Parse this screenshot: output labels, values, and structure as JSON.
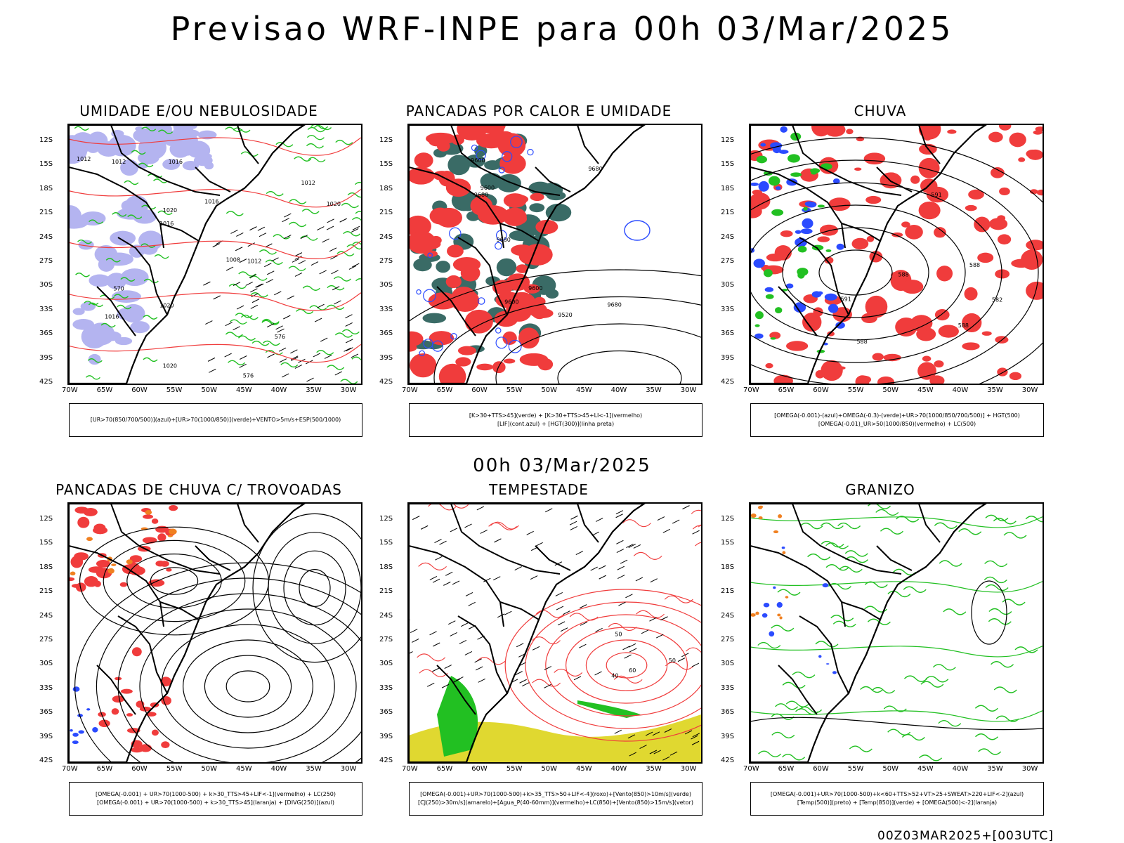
{
  "title": "Previsao WRF-INPE  para 00h 03/Mar/2025",
  "subtitle": "00h 03/Mar/2025",
  "footer": "00Z03MAR2025+[003UTC]",
  "y_ticks": [
    "12S",
    "15S",
    "18S",
    "21S",
    "24S",
    "27S",
    "30S",
    "33S",
    "36S",
    "39S",
    "42S"
  ],
  "x_ticks": [
    "70W",
    "65W",
    "60W",
    "55W",
    "50W",
    "45W",
    "40W",
    "35W",
    "30W"
  ],
  "colors": {
    "red": "#f03c3c",
    "green": "#22c022",
    "blue": "#2b4bff",
    "lavender": "#b4b4f0",
    "teal": "#3a6b66",
    "yellow": "#e0d830",
    "orange": "#f08020"
  },
  "panels": [
    {
      "title": "UMIDADE E/OU NEBULOSIDADE",
      "legend": [
        "[UR>70(850/700/500)](azul)+[UR>70(1000/850)](verde)+VENTO>5m/s+ESP(500/1000)"
      ],
      "contour_labels": [
        "1016",
        "1016",
        "1016",
        "1012",
        "1012",
        "1020",
        "1020",
        "1008",
        "1012",
        "1016",
        "1020",
        "1020",
        "1012",
        "576",
        "570",
        "576"
      ]
    },
    {
      "title": "PANCADAS POR CALOR E UMIDADE",
      "legend": [
        "[K>30+TTS>45](verde) + [K>30+TTS>45+LI<-1](vermelho)",
        "[LIF](cont.azul) + [HGT(300)](linha preta)"
      ],
      "contour_labels": [
        "9680",
        "9600",
        "9600",
        "9600",
        "9520",
        "9680",
        "9680",
        "9680",
        "9600"
      ]
    },
    {
      "title": "CHUVA",
      "legend": [
        "[OMEGA(-0.001)-(azul)+OMEGA(-0.3)-(verde)+UR>70(1000/850/700/500)] + HGT(500)",
        "[OMEGA(-0.01)_UR>50(1000/850)(vermelho) + LC(500)"
      ],
      "contour_labels": [
        "588",
        "588",
        "591",
        "591",
        "588",
        "588",
        "582"
      ]
    },
    {
      "title": "PANCADAS DE CHUVA C/ TROVOADAS",
      "legend": [
        "[OMEGA(-0.001) + UR>70(1000-500) + k>30_TTS>45+LIF<-1](vermelho) + LC(250)",
        "[OMEGA(-0.001) + UR>70(1000-500) + k>30_TTS>45](laranja) + [DIVG(250)](azul)"
      ],
      "contour_labels": []
    },
    {
      "title": "TEMPESTADE",
      "legend": [
        "[OMEGA(-0.001)+UR>70(1000-500)+k>35_TTS>50+LIF<-4](roxo)+[Vento(850)>10m/s](verde)",
        "[CJ(250)>30m/s](amarelo)+[Agua_P(40-60mm)](vermelho)+LC(850)+[Vento(850)>15m/s](vetor)"
      ],
      "contour_labels": [
        "40",
        "50",
        "60",
        "50"
      ]
    },
    {
      "title": "GRANIZO",
      "legend": [
        "[OMEGA(-0.001)+UR>70(1000-500)+k<60+TTS>52+VT>25+SWEAT>220+LIF<-2](azul)",
        "[Temp(500)](preto) + [Temp(850)](verde) + [OMEGA(500)<-2](laranja)"
      ],
      "contour_labels": []
    }
  ]
}
